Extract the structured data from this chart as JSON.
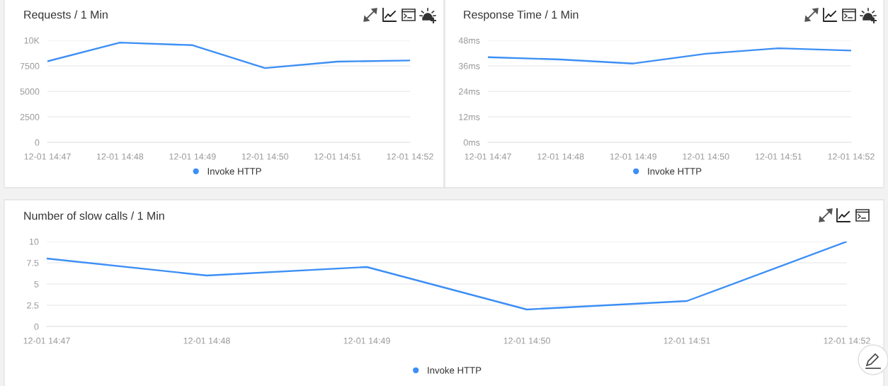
{
  "chart_data": [
    {
      "type": "line",
      "title": "Requests / 1 Min",
      "categories": [
        "12-01 14:47",
        "12-01 14:48",
        "12-01 14:49",
        "12-01 14:50",
        "12-01 14:51",
        "12-01 14:52"
      ],
      "series": [
        {
          "name": "Invoke HTTP",
          "color": "#3d8ff5",
          "values": [
            7950,
            9780,
            9530,
            7280,
            7920,
            8030
          ]
        }
      ],
      "ylim": [
        0,
        10000
      ],
      "yticks": [
        0,
        2500,
        5000,
        7500,
        {
          "value": 10000,
          "label": "10K"
        }
      ],
      "grid": "y",
      "legend": "bottom"
    },
    {
      "type": "line",
      "title": "Response Time / 1 Min",
      "categories": [
        "12-01 14:47",
        "12-01 14:48",
        "12-01 14:49",
        "12-01 14:50",
        "12-01 14:51",
        "12-01 14:52"
      ],
      "series": [
        {
          "name": "Invoke HTTP",
          "color": "#3d8ff5",
          "values": [
            40.1,
            39.0,
            37.1,
            41.7,
            44.3,
            43.2
          ]
        }
      ],
      "ylim": [
        0,
        48
      ],
      "yticks": [
        {
          "value": 0,
          "label": "0ms"
        },
        {
          "value": 12,
          "label": "12ms"
        },
        {
          "value": 24,
          "label": "24ms"
        },
        {
          "value": 36,
          "label": "36ms"
        },
        {
          "value": 48,
          "label": "48ms"
        }
      ],
      "grid": "y",
      "legend": "bottom"
    },
    {
      "type": "line",
      "title": "Number of slow calls / 1 Min",
      "categories": [
        "12-01 14:47",
        "12-01 14:48",
        "12-01 14:49",
        "12-01 14:50",
        "12-01 14:51",
        "12-01 14:52"
      ],
      "series": [
        {
          "name": "Invoke HTTP",
          "color": "#3d8ff5",
          "values": [
            8,
            6,
            7,
            2,
            3,
            10
          ]
        }
      ],
      "ylim": [
        0,
        10
      ],
      "yticks": [
        0,
        2.5,
        5,
        7.5,
        10
      ],
      "grid": "y",
      "legend": "bottom"
    }
  ]
}
